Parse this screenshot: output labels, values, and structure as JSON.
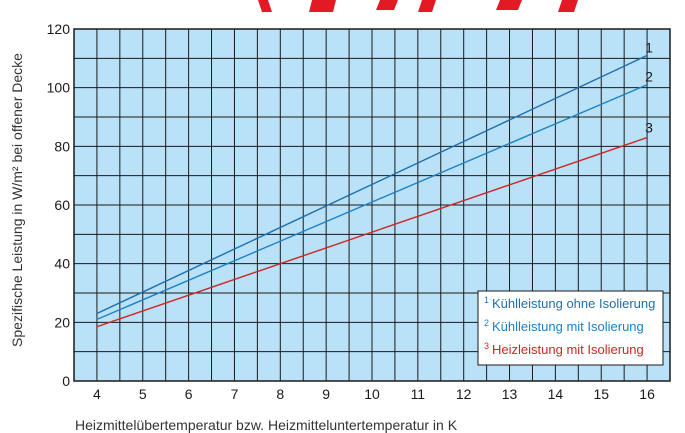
{
  "colors": {
    "plot_bg": "#b9e1f7",
    "grid": "#1a1a1a",
    "series_1": "#1d6fb0",
    "series_2": "#1d82c6",
    "series_3": "#d02525",
    "header_red": "#e21a23"
  },
  "chart_data": {
    "type": "line",
    "xlabel": "Heizmittelübertemperatur bzw. Heizmitteluntertemperatur in K",
    "ylabel": "Spezifische Leistung in W/m² bei offener Decke",
    "xlim": [
      3.5,
      16.5
    ],
    "ylim": [
      0,
      120
    ],
    "x_ticks": [
      "4",
      "5",
      "6",
      "7",
      "8",
      "9",
      "10",
      "11",
      "12",
      "13",
      "14",
      "15",
      "16"
    ],
    "y_ticks": [
      "0",
      "20",
      "40",
      "60",
      "80",
      "100",
      "120"
    ],
    "grid": true,
    "legend_position": "bottom-right",
    "series": [
      {
        "id": "1",
        "name": "Kühlleistung ohne Isolierung",
        "x": [
          4,
          16
        ],
        "y": [
          23,
          111
        ]
      },
      {
        "id": "2",
        "name": "Kühlleistung mit Isolierung",
        "x": [
          4,
          16
        ],
        "y": [
          21,
          101
        ]
      },
      {
        "id": "3",
        "name": "Heizleistung mit Isolierung",
        "x": [
          4,
          16
        ],
        "y": [
          18.5,
          83
        ]
      }
    ]
  }
}
